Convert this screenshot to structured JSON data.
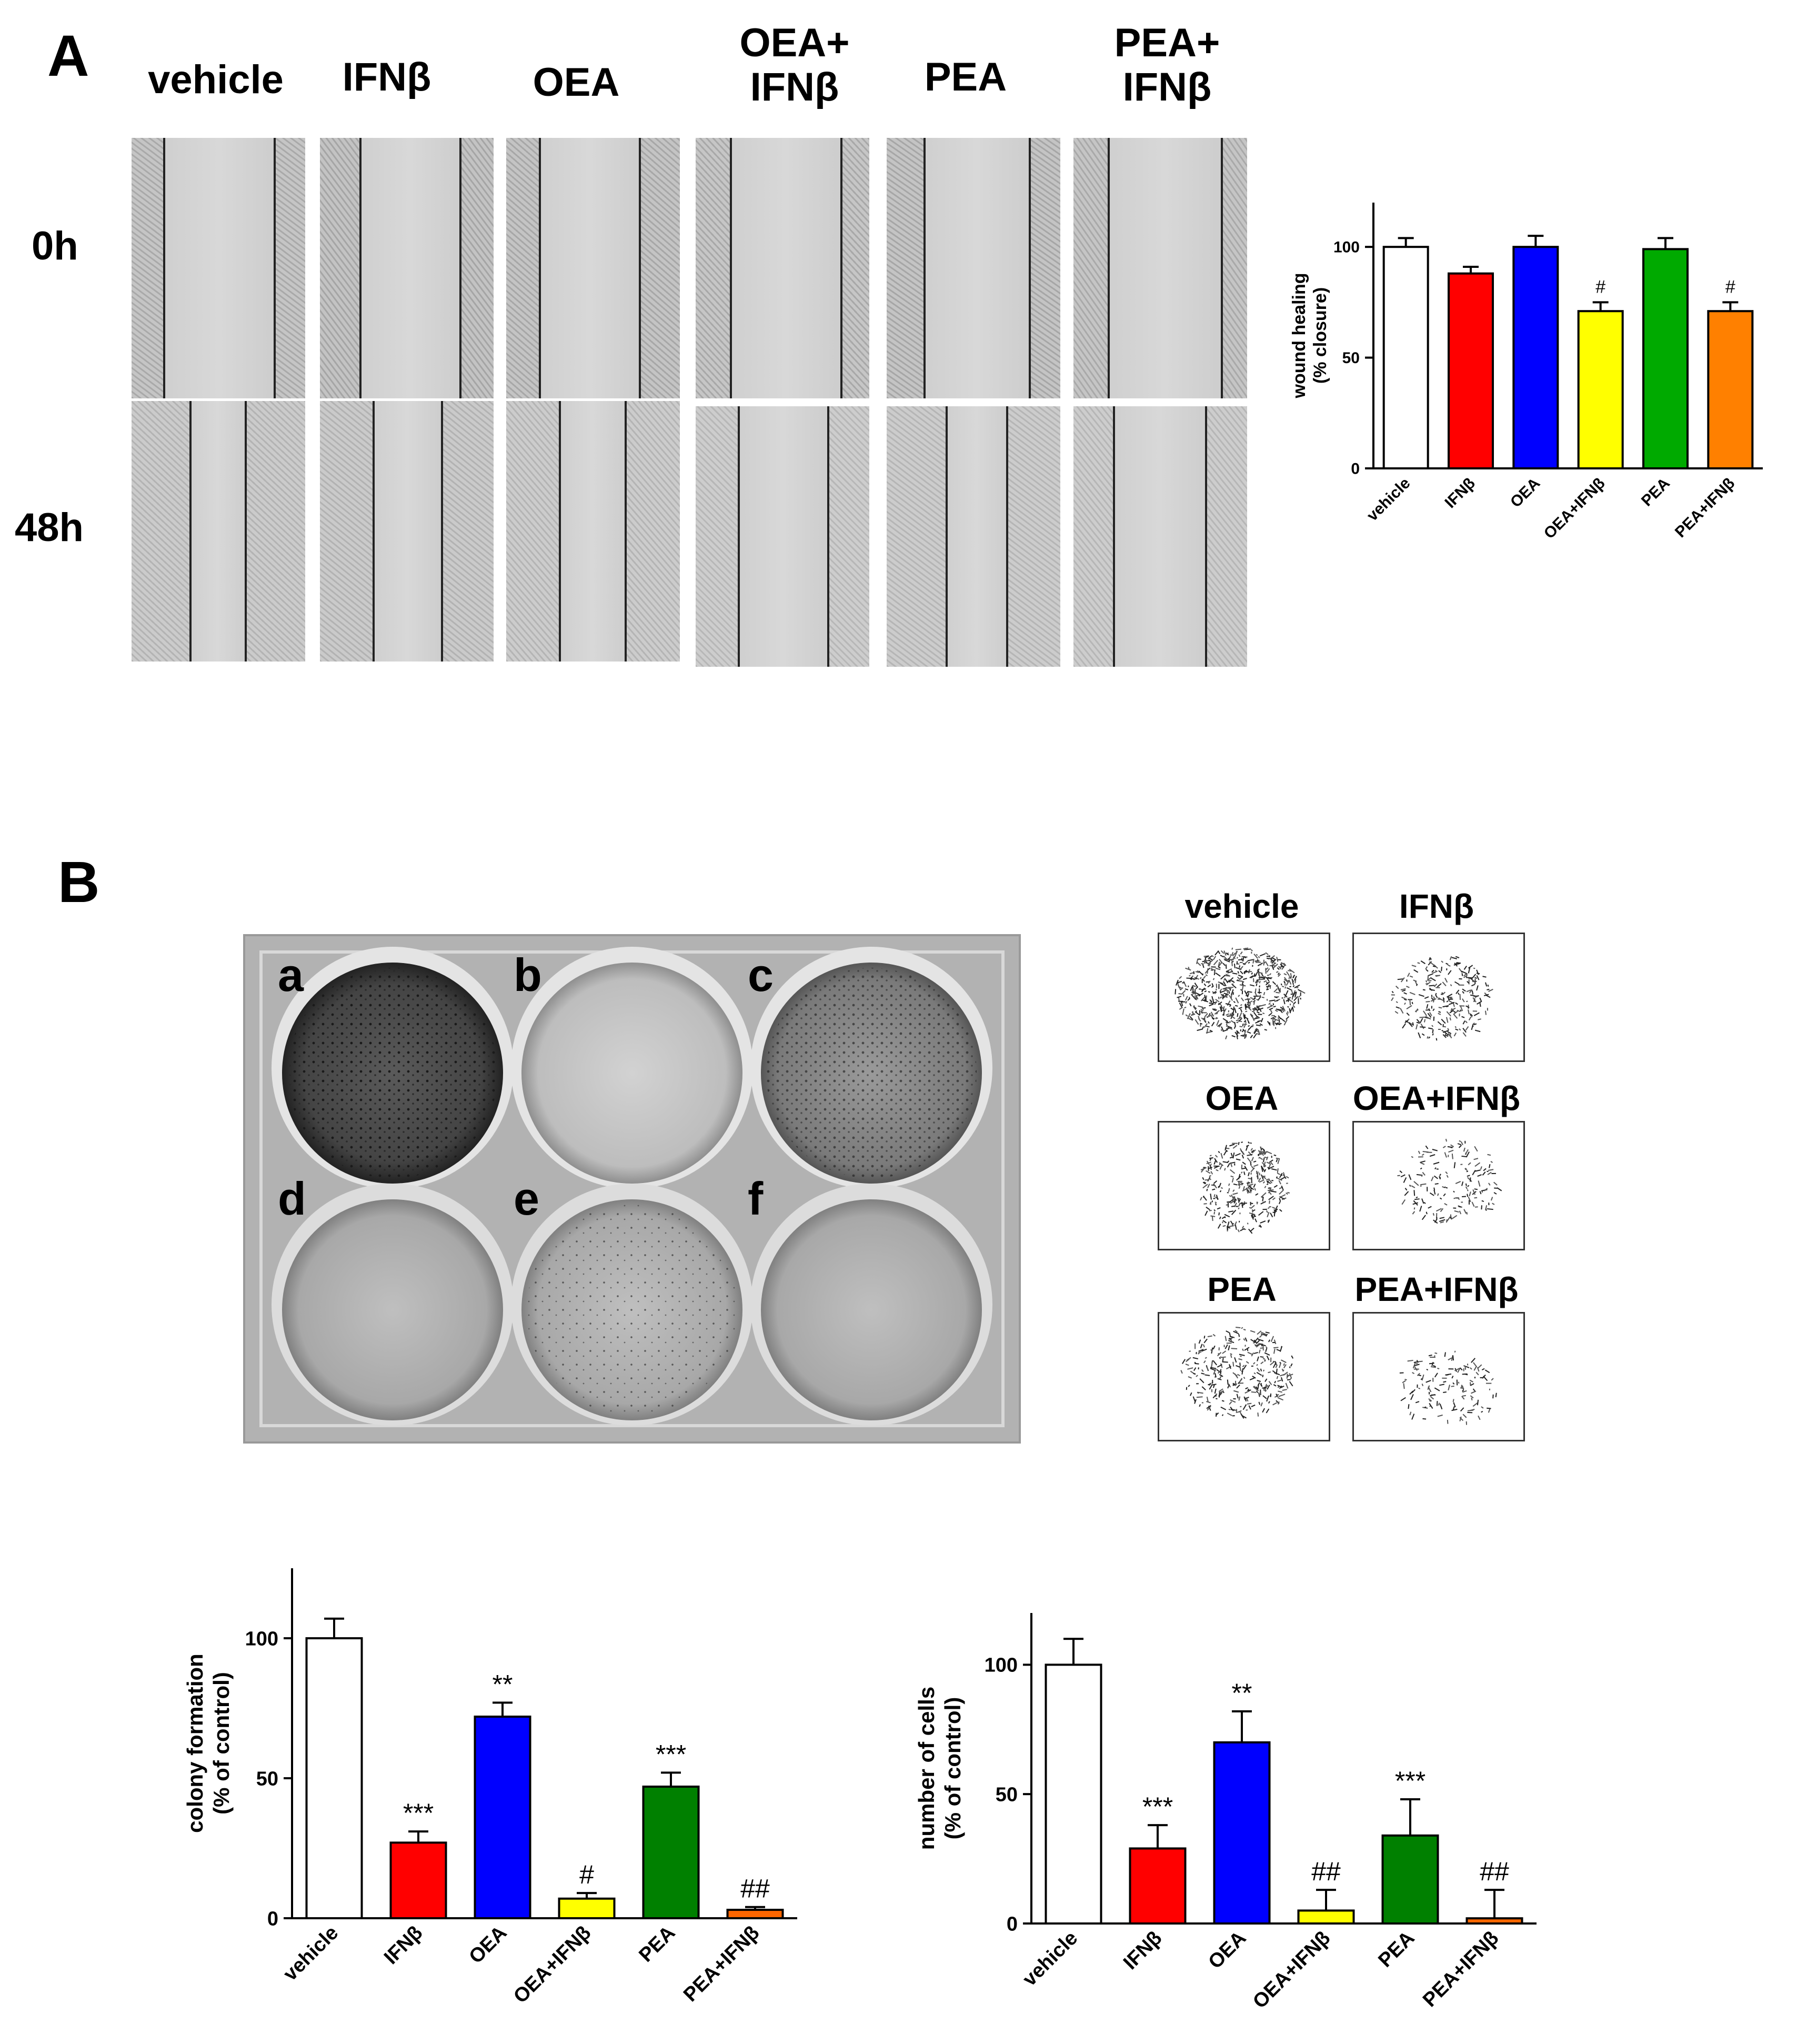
{
  "panelA": {
    "letter": "A",
    "columns": [
      "vehicle",
      "IFNβ",
      "OEA",
      "OEA+\nIFNβ",
      "PEA",
      "PEA+\nIFNβ"
    ],
    "rows": [
      "0h",
      "48h"
    ]
  },
  "panelB": {
    "letter": "B",
    "wells": [
      "a",
      "b",
      "c",
      "d",
      "e",
      "f"
    ],
    "thumbnails": [
      "vehicle",
      "IFNβ",
      "OEA",
      "OEA+IFNβ",
      "PEA",
      "PEA+IFNβ"
    ]
  },
  "colors": {
    "vehicle": "#ffffff",
    "IFNb": "#ff0000",
    "OEA": "#0000ff",
    "OEA_IFNb": "#ffff00",
    "PEA": "#00aa00",
    "PEA_IFNb": "#ff8000",
    "PEA_dark": "#008000",
    "PEA_IFNb_dark": "#ff6600"
  },
  "chart_data": [
    {
      "type": "bar",
      "categories": [
        "vehicle",
        "IFNβ",
        "OEA",
        "OEA+IFNβ",
        "PEA",
        "PEA+IFNβ"
      ],
      "values": [
        100,
        88,
        100,
        71,
        99,
        71
      ],
      "errors": [
        4,
        3,
        5,
        4,
        5,
        4
      ],
      "annotations": [
        "",
        "",
        "",
        "#",
        "",
        "#"
      ],
      "ylabel": "wound healing\n(% closure)",
      "yticks": [
        0,
        50,
        100
      ],
      "ylim": [
        0,
        120
      ],
      "colors": [
        "#ffffff",
        "#ff0000",
        "#0000ff",
        "#ffff00",
        "#00aa00",
        "#ff8000"
      ]
    },
    {
      "type": "bar",
      "categories": [
        "vehicle",
        "IFNβ",
        "OEA",
        "OEA+IFNβ",
        "PEA",
        "PEA+IFNβ"
      ],
      "values": [
        100,
        27,
        72,
        7,
        47,
        3
      ],
      "errors": [
        7,
        4,
        5,
        2,
        5,
        1
      ],
      "annotations": [
        "",
        "***",
        "**",
        "#",
        "***",
        "##"
      ],
      "ylabel": "colony formation\n(% of control)",
      "yticks": [
        0,
        50,
        100
      ],
      "ylim": [
        0,
        125
      ],
      "colors": [
        "#ffffff",
        "#ff0000",
        "#0000ff",
        "#ffff00",
        "#008000",
        "#ff6600"
      ]
    },
    {
      "type": "bar",
      "categories": [
        "vehicle",
        "IFNβ",
        "OEA",
        "OEA+IFNβ",
        "PEA",
        "PEA+IFNβ"
      ],
      "values": [
        100,
        29,
        70,
        5,
        34,
        2
      ],
      "errors": [
        10,
        9,
        12,
        8,
        14,
        11
      ],
      "annotations": [
        "",
        "***",
        "**",
        "##",
        "***",
        "##"
      ],
      "ylabel": "number of cells\n(% of control)",
      "yticks": [
        0,
        50,
        100
      ],
      "ylim": [
        0,
        120
      ],
      "colors": [
        "#ffffff",
        "#ff0000",
        "#0000ff",
        "#ffff00",
        "#008000",
        "#ff6600"
      ]
    }
  ]
}
